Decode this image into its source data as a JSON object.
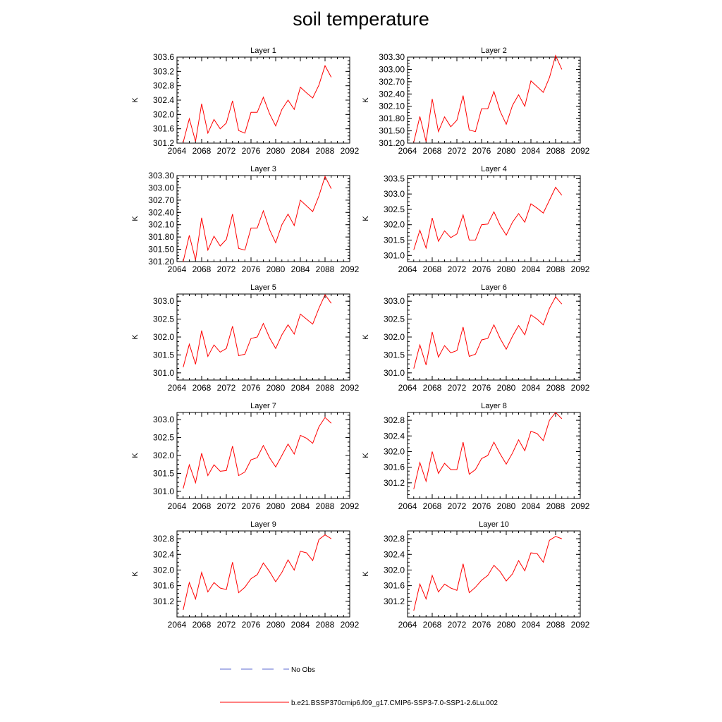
{
  "title": "soil temperature",
  "legend": {
    "obs_label": "No Obs",
    "obs_color": "#5b6ad0",
    "model_label": "b.e21.BSSP370cmip6.f09_g17.CMIP6-SSP3-7.0-SSP1-2.6Lu.002",
    "model_color": "#ff0000"
  },
  "chart_data": [
    {
      "type": "line",
      "title": "Layer 1",
      "ylabel": "K",
      "xlim": [
        2064,
        2092
      ],
      "ylim": [
        301.2,
        303.6
      ],
      "yticks": [
        "301.2",
        "301.6",
        "302.0",
        "302.4",
        "302.8",
        "303.2",
        "303.6"
      ],
      "xticks": [
        "2064",
        "2068",
        "2072",
        "2076",
        "2080",
        "2084",
        "2088",
        "2092"
      ],
      "series": [
        {
          "x": [
            2065,
            2066,
            2067,
            2068,
            2069,
            2070,
            2071,
            2072,
            2073,
            2074,
            2075,
            2076,
            2077,
            2078,
            2079,
            2080,
            2081,
            2082,
            2083,
            2084,
            2085,
            2086,
            2087,
            2088,
            2089
          ],
          "values": [
            301.22,
            301.88,
            301.25,
            302.3,
            301.48,
            301.86,
            301.6,
            301.76,
            302.38,
            301.55,
            301.48,
            302.06,
            302.06,
            302.48,
            302.02,
            301.68,
            302.14,
            302.4,
            302.14,
            302.76,
            302.6,
            302.46,
            302.82,
            303.36,
            303.04
          ]
        }
      ]
    },
    {
      "type": "line",
      "title": "Layer 2",
      "ylabel": "K",
      "xlim": [
        2064,
        2092
      ],
      "ylim": [
        301.2,
        303.3
      ],
      "yticks": [
        "301.20",
        "301.50",
        "301.80",
        "302.10",
        "302.40",
        "302.70",
        "303.00",
        "303.30"
      ],
      "xticks": [
        "2064",
        "2068",
        "2072",
        "2076",
        "2080",
        "2084",
        "2088",
        "2092"
      ],
      "series": [
        {
          "x": [
            2065,
            2066,
            2067,
            2068,
            2069,
            2070,
            2071,
            2072,
            2073,
            2074,
            2075,
            2076,
            2077,
            2078,
            2079,
            2080,
            2081,
            2082,
            2083,
            2084,
            2085,
            2086,
            2087,
            2088,
            2089
          ],
          "values": [
            301.22,
            301.85,
            301.24,
            302.28,
            301.48,
            301.84,
            301.6,
            301.76,
            302.36,
            301.52,
            301.48,
            302.04,
            302.04,
            302.46,
            301.98,
            301.66,
            302.12,
            302.38,
            302.1,
            302.72,
            302.58,
            302.44,
            302.8,
            303.34,
            303.0
          ]
        }
      ]
    },
    {
      "type": "line",
      "title": "Layer 3",
      "ylabel": "K",
      "xlim": [
        2064,
        2092
      ],
      "ylim": [
        301.2,
        303.3
      ],
      "yticks": [
        "301.20",
        "301.50",
        "301.80",
        "302.10",
        "302.40",
        "302.70",
        "303.00",
        "303.30"
      ],
      "xticks": [
        "2064",
        "2068",
        "2072",
        "2076",
        "2080",
        "2084",
        "2088",
        "2092"
      ],
      "series": [
        {
          "x": [
            2065,
            2066,
            2067,
            2068,
            2069,
            2070,
            2071,
            2072,
            2073,
            2074,
            2075,
            2076,
            2077,
            2078,
            2079,
            2080,
            2081,
            2082,
            2083,
            2084,
            2085,
            2086,
            2087,
            2088,
            2089
          ],
          "values": [
            301.2,
            301.84,
            301.24,
            302.27,
            301.48,
            301.82,
            301.58,
            301.74,
            302.36,
            301.52,
            301.48,
            302.02,
            302.02,
            302.44,
            301.98,
            301.66,
            302.1,
            302.36,
            302.08,
            302.7,
            302.56,
            302.42,
            302.8,
            303.28,
            302.98
          ]
        }
      ]
    },
    {
      "type": "line",
      "title": "Layer 4",
      "ylabel": "K",
      "xlim": [
        2064,
        2092
      ],
      "ylim": [
        300.8,
        303.6
      ],
      "yticks": [
        "301.0",
        "301.5",
        "302.0",
        "302.5",
        "303.0",
        "303.5"
      ],
      "xticks": [
        "2064",
        "2068",
        "2072",
        "2076",
        "2080",
        "2084",
        "2088",
        "2092"
      ],
      "series": [
        {
          "x": [
            2065,
            2066,
            2067,
            2068,
            2069,
            2070,
            2071,
            2072,
            2073,
            2074,
            2075,
            2076,
            2077,
            2078,
            2079,
            2080,
            2081,
            2082,
            2083,
            2084,
            2085,
            2086,
            2087,
            2088,
            2089
          ],
          "values": [
            301.18,
            301.82,
            301.24,
            302.22,
            301.46,
            301.8,
            301.58,
            301.7,
            302.32,
            301.5,
            301.5,
            302.0,
            302.02,
            302.42,
            301.98,
            301.66,
            302.08,
            302.36,
            302.08,
            302.68,
            302.54,
            302.38,
            302.8,
            303.22,
            302.96
          ]
        }
      ]
    },
    {
      "type": "line",
      "title": "Layer 5",
      "ylabel": "K",
      "xlim": [
        2064,
        2092
      ],
      "ylim": [
        300.8,
        303.2
      ],
      "yticks": [
        "301.0",
        "301.5",
        "302.0",
        "302.5",
        "303.0"
      ],
      "xticks": [
        "2064",
        "2068",
        "2072",
        "2076",
        "2080",
        "2084",
        "2088",
        "2092"
      ],
      "series": [
        {
          "x": [
            2065,
            2066,
            2067,
            2068,
            2069,
            2070,
            2071,
            2072,
            2073,
            2074,
            2075,
            2076,
            2077,
            2078,
            2079,
            2080,
            2081,
            2082,
            2083,
            2084,
            2085,
            2086,
            2087,
            2088,
            2089
          ],
          "values": [
            301.16,
            301.8,
            301.24,
            302.18,
            301.46,
            301.78,
            301.58,
            301.68,
            302.3,
            301.48,
            301.52,
            301.96,
            302.0,
            302.38,
            301.98,
            301.68,
            302.06,
            302.34,
            302.08,
            302.64,
            302.5,
            302.36,
            302.8,
            303.18,
            302.94
          ]
        }
      ]
    },
    {
      "type": "line",
      "title": "Layer 6",
      "ylabel": "K",
      "xlim": [
        2064,
        2092
      ],
      "ylim": [
        300.8,
        303.2
      ],
      "yticks": [
        "301.0",
        "301.5",
        "302.0",
        "302.5",
        "303.0"
      ],
      "xticks": [
        "2064",
        "2068",
        "2072",
        "2076",
        "2080",
        "2084",
        "2088",
        "2092"
      ],
      "series": [
        {
          "x": [
            2065,
            2066,
            2067,
            2068,
            2069,
            2070,
            2071,
            2072,
            2073,
            2074,
            2075,
            2076,
            2077,
            2078,
            2079,
            2080,
            2081,
            2082,
            2083,
            2084,
            2085,
            2086,
            2087,
            2088,
            2089
          ],
          "values": [
            301.12,
            301.78,
            301.22,
            302.14,
            301.44,
            301.76,
            301.56,
            301.62,
            302.28,
            301.46,
            301.52,
            301.92,
            301.96,
            302.34,
            301.96,
            301.66,
            302.02,
            302.32,
            302.06,
            302.62,
            302.5,
            302.34,
            302.8,
            303.12,
            302.92
          ]
        }
      ]
    },
    {
      "type": "line",
      "title": "Layer 7",
      "ylabel": "K",
      "xlim": [
        2064,
        2092
      ],
      "ylim": [
        300.8,
        303.2
      ],
      "yticks": [
        "301.0",
        "301.5",
        "302.0",
        "302.5",
        "303.0"
      ],
      "xticks": [
        "2064",
        "2068",
        "2072",
        "2076",
        "2080",
        "2084",
        "2088",
        "2092"
      ],
      "series": [
        {
          "x": [
            2065,
            2066,
            2067,
            2068,
            2069,
            2070,
            2071,
            2072,
            2073,
            2074,
            2075,
            2076,
            2077,
            2078,
            2079,
            2080,
            2081,
            2082,
            2083,
            2084,
            2085,
            2086,
            2087,
            2088,
            2089
          ],
          "values": [
            301.08,
            301.74,
            301.24,
            302.06,
            301.44,
            301.74,
            301.56,
            301.58,
            302.26,
            301.44,
            301.54,
            301.88,
            301.94,
            302.28,
            301.94,
            301.68,
            302.0,
            302.32,
            302.04,
            302.56,
            302.48,
            302.34,
            302.8,
            303.06,
            302.9
          ]
        }
      ]
    },
    {
      "type": "line",
      "title": "Layer 8",
      "ylabel": "K",
      "xlim": [
        2064,
        2092
      ],
      "ylim": [
        300.8,
        303.0
      ],
      "yticks": [
        "301.2",
        "301.6",
        "302.0",
        "302.4",
        "302.8"
      ],
      "xticks": [
        "2064",
        "2068",
        "2072",
        "2076",
        "2080",
        "2084",
        "2088",
        "2092"
      ],
      "series": [
        {
          "x": [
            2065,
            2066,
            2067,
            2068,
            2069,
            2070,
            2071,
            2072,
            2073,
            2074,
            2075,
            2076,
            2077,
            2078,
            2079,
            2080,
            2081,
            2082,
            2083,
            2084,
            2085,
            2086,
            2087,
            2088,
            2089
          ],
          "values": [
            301.04,
            301.72,
            301.24,
            302.0,
            301.44,
            301.7,
            301.54,
            301.54,
            302.24,
            301.42,
            301.54,
            301.82,
            301.9,
            302.24,
            301.94,
            301.68,
            301.96,
            302.3,
            302.02,
            302.52,
            302.46,
            302.28,
            302.8,
            303.0,
            302.84
          ]
        }
      ]
    },
    {
      "type": "line",
      "title": "Layer 9",
      "ylabel": "K",
      "xlim": [
        2064,
        2092
      ],
      "ylim": [
        300.8,
        303.0
      ],
      "yticks": [
        "301.2",
        "301.6",
        "302.0",
        "302.4",
        "302.8"
      ],
      "xticks": [
        "2064",
        "2068",
        "2072",
        "2076",
        "2080",
        "2084",
        "2088",
        "2092"
      ],
      "series": [
        {
          "x": [
            2065,
            2066,
            2067,
            2068,
            2069,
            2070,
            2071,
            2072,
            2073,
            2074,
            2075,
            2076,
            2077,
            2078,
            2079,
            2080,
            2081,
            2082,
            2083,
            2084,
            2085,
            2086,
            2087,
            2088,
            2089
          ],
          "values": [
            300.98,
            301.68,
            301.26,
            301.94,
            301.44,
            301.68,
            301.54,
            301.5,
            302.2,
            301.42,
            301.56,
            301.78,
            301.88,
            302.18,
            301.96,
            301.7,
            301.94,
            302.26,
            302.0,
            302.48,
            302.44,
            302.24,
            302.78,
            302.9,
            302.8
          ]
        }
      ]
    },
    {
      "type": "line",
      "title": "Layer 10",
      "ylabel": "K",
      "xlim": [
        2064,
        2092
      ],
      "ylim": [
        300.8,
        303.0
      ],
      "yticks": [
        "301.2",
        "301.6",
        "302.0",
        "302.4",
        "302.8"
      ],
      "xticks": [
        "2064",
        "2068",
        "2072",
        "2076",
        "2080",
        "2084",
        "2088",
        "2092"
      ],
      "series": [
        {
          "x": [
            2065,
            2066,
            2067,
            2068,
            2069,
            2070,
            2071,
            2072,
            2073,
            2074,
            2075,
            2076,
            2077,
            2078,
            2079,
            2080,
            2081,
            2082,
            2083,
            2084,
            2085,
            2086,
            2087,
            2088,
            2089
          ],
          "values": [
            300.96,
            301.64,
            301.26,
            301.86,
            301.44,
            301.64,
            301.54,
            301.48,
            302.16,
            301.42,
            301.56,
            301.74,
            301.86,
            302.12,
            301.96,
            301.72,
            301.9,
            302.24,
            301.98,
            302.44,
            302.42,
            302.2,
            302.76,
            302.86,
            302.8
          ]
        }
      ]
    }
  ]
}
